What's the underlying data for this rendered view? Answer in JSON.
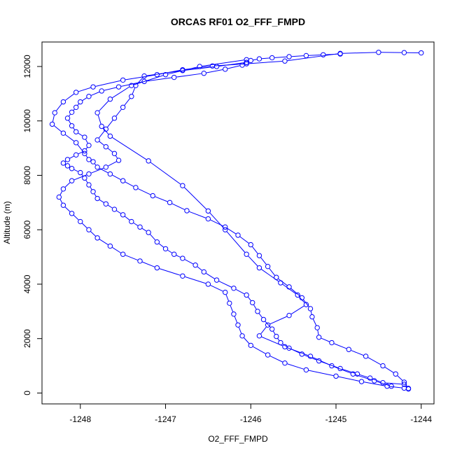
{
  "chart_data": {
    "type": "line",
    "title": "ORCAS RF01 O2_FFF_FMPD",
    "xlabel": "O2_FFF_FMPD",
    "ylabel": "Altitude (m)",
    "xlim": [
      -1248.45,
      -1243.85
    ],
    "ylim": [
      -400,
      12900
    ],
    "xticks": [
      -1248,
      -1247,
      -1246,
      -1245,
      -1244
    ],
    "xtick_labels": [
      "-1248",
      "-1247",
      "-1246",
      "-1245",
      "-1244"
    ],
    "yticks": [
      0,
      2000,
      4000,
      6000,
      8000,
      10000,
      12000
    ],
    "ytick_labels": [
      "0",
      "2000",
      "4000",
      "6000",
      "8000",
      "10000",
      "12000"
    ],
    "grid": false,
    "legend": "none",
    "marker": "open-circle",
    "color": "#0000ff",
    "series": [
      {
        "points": [
          [
            -1244.15,
            150
          ],
          [
            -1244.2,
            320
          ],
          [
            -1244.45,
            380
          ],
          [
            -1244.6,
            550
          ],
          [
            -1244.75,
            700
          ],
          [
            -1244.95,
            900
          ],
          [
            -1245.2,
            1180
          ],
          [
            -1245.4,
            1430
          ],
          [
            -1245.55,
            1650
          ],
          [
            -1245.65,
            1850
          ],
          [
            -1245.7,
            2080
          ],
          [
            -1245.75,
            2350
          ],
          [
            -1245.85,
            2700
          ],
          [
            -1245.92,
            3000
          ],
          [
            -1245.98,
            3320
          ],
          [
            -1246.05,
            3600
          ],
          [
            -1246.2,
            3850
          ],
          [
            -1246.4,
            4150
          ],
          [
            -1246.55,
            4450
          ],
          [
            -1246.65,
            4700
          ],
          [
            -1246.8,
            4950
          ],
          [
            -1246.9,
            5100
          ],
          [
            -1247.0,
            5300
          ],
          [
            -1247.1,
            5550
          ],
          [
            -1247.2,
            5900
          ],
          [
            -1247.3,
            6100
          ],
          [
            -1247.4,
            6300
          ],
          [
            -1247.5,
            6550
          ],
          [
            -1247.6,
            6750
          ],
          [
            -1247.7,
            6950
          ],
          [
            -1247.8,
            7150
          ],
          [
            -1247.85,
            7400
          ],
          [
            -1247.9,
            7650
          ],
          [
            -1247.95,
            7900
          ],
          [
            -1248.0,
            8100
          ],
          [
            -1248.1,
            8250
          ],
          [
            -1248.15,
            8350
          ],
          [
            -1248.2,
            8450
          ],
          [
            -1248.15,
            8580
          ],
          [
            -1248.05,
            8750
          ],
          [
            -1247.95,
            8900
          ],
          [
            -1247.9,
            9100
          ],
          [
            -1247.95,
            9400
          ],
          [
            -1248.05,
            9600
          ],
          [
            -1248.1,
            9820
          ],
          [
            -1248.15,
            10100
          ],
          [
            -1248.1,
            10320
          ],
          [
            -1248.05,
            10500
          ],
          [
            -1248.0,
            10700
          ],
          [
            -1247.9,
            10900
          ],
          [
            -1247.75,
            11100
          ],
          [
            -1247.55,
            11250
          ],
          [
            -1247.25,
            11450
          ],
          [
            -1246.9,
            11600
          ],
          [
            -1246.55,
            11750
          ],
          [
            -1246.3,
            11900
          ],
          [
            -1246.1,
            12050
          ],
          [
            -1246.05,
            12150
          ],
          [
            -1246.0,
            12220
          ],
          [
            -1245.9,
            12280
          ],
          [
            -1245.75,
            12320
          ],
          [
            -1245.55,
            12360
          ],
          [
            -1245.35,
            12400
          ],
          [
            -1245.15,
            12430
          ],
          [
            -1244.95,
            12460
          ]
        ]
      },
      {
        "points": [
          [
            -1244.0,
            12500
          ],
          [
            -1244.2,
            12510
          ],
          [
            -1244.5,
            12520
          ],
          [
            -1244.95,
            12480
          ],
          [
            -1245.6,
            12200
          ],
          [
            -1246.05,
            12100
          ],
          [
            -1246.45,
            12020
          ],
          [
            -1246.8,
            11880
          ],
          [
            -1247.1,
            11700
          ],
          [
            -1247.5,
            11500
          ],
          [
            -1247.85,
            11250
          ],
          [
            -1248.05,
            11050
          ],
          [
            -1248.2,
            10700
          ],
          [
            -1248.3,
            10300
          ],
          [
            -1248.33,
            9880
          ],
          [
            -1248.2,
            9550
          ],
          [
            -1248.05,
            9200
          ],
          [
            -1247.95,
            8800
          ],
          [
            -1247.9,
            8580
          ],
          [
            -1247.85,
            8500
          ],
          [
            -1247.8,
            8300
          ],
          [
            -1247.65,
            8050
          ],
          [
            -1247.5,
            7800
          ],
          [
            -1247.35,
            7550
          ],
          [
            -1247.15,
            7250
          ],
          [
            -1246.95,
            7000
          ],
          [
            -1246.75,
            6700
          ],
          [
            -1246.5,
            6400
          ],
          [
            -1246.3,
            6100
          ],
          [
            -1246.15,
            5800
          ],
          [
            -1246.0,
            5450
          ],
          [
            -1245.9,
            5050
          ],
          [
            -1245.8,
            4650
          ],
          [
            -1245.7,
            4250
          ],
          [
            -1245.55,
            3900
          ],
          [
            -1245.4,
            3500
          ],
          [
            -1245.3,
            3100
          ],
          [
            -1245.28,
            2800
          ],
          [
            -1245.22,
            2400
          ],
          [
            -1245.2,
            2050
          ],
          [
            -1245.05,
            1850
          ],
          [
            -1244.85,
            1600
          ],
          [
            -1244.65,
            1350
          ],
          [
            -1244.45,
            1000
          ],
          [
            -1244.3,
            700
          ],
          [
            -1244.2,
            400
          ],
          [
            -1244.15,
            170
          ]
        ]
      },
      {
        "points": [
          [
            -1244.2,
            180
          ],
          [
            -1244.4,
            250
          ],
          [
            -1244.7,
            420
          ],
          [
            -1245.0,
            620
          ],
          [
            -1245.35,
            850
          ],
          [
            -1245.6,
            1100
          ],
          [
            -1245.8,
            1400
          ],
          [
            -1246.0,
            1750
          ],
          [
            -1246.1,
            2100
          ],
          [
            -1246.15,
            2500
          ],
          [
            -1246.2,
            2900
          ],
          [
            -1246.25,
            3300
          ],
          [
            -1246.3,
            3700
          ],
          [
            -1246.5,
            4000
          ],
          [
            -1246.8,
            4300
          ],
          [
            -1247.1,
            4600
          ],
          [
            -1247.3,
            4850
          ],
          [
            -1247.5,
            5100
          ],
          [
            -1247.65,
            5400
          ],
          [
            -1247.8,
            5700
          ],
          [
            -1247.9,
            6000
          ],
          [
            -1248.0,
            6300
          ],
          [
            -1248.1,
            6600
          ],
          [
            -1248.2,
            6900
          ],
          [
            -1248.25,
            7200
          ],
          [
            -1248.2,
            7500
          ],
          [
            -1248.1,
            7800
          ],
          [
            -1247.9,
            8050
          ],
          [
            -1247.7,
            8300
          ],
          [
            -1247.55,
            8550
          ],
          [
            -1247.6,
            8800
          ],
          [
            -1247.7,
            9050
          ],
          [
            -1247.8,
            9300
          ],
          [
            -1247.7,
            9700
          ],
          [
            -1247.6,
            10100
          ],
          [
            -1247.5,
            10500
          ],
          [
            -1247.4,
            10900
          ],
          [
            -1247.35,
            11300
          ],
          [
            -1247.25,
            11650
          ],
          [
            -1246.8,
            11850
          ],
          [
            -1246.4,
            12000
          ],
          [
            -1246.05,
            12150
          ]
        ]
      },
      {
        "points": [
          [
            -1246.05,
            12250
          ],
          [
            -1246.6,
            12000
          ],
          [
            -1247.0,
            11700
          ],
          [
            -1247.4,
            11300
          ],
          [
            -1247.65,
            10800
          ],
          [
            -1247.8,
            10300
          ],
          [
            -1247.75,
            9800
          ],
          [
            -1247.65,
            9440
          ],
          [
            -1247.2,
            8530
          ],
          [
            -1246.8,
            7620
          ],
          [
            -1246.5,
            6690
          ],
          [
            -1246.3,
            6000
          ],
          [
            -1246.05,
            5100
          ],
          [
            -1245.9,
            4600
          ],
          [
            -1245.65,
            4050
          ],
          [
            -1245.45,
            3600
          ],
          [
            -1245.35,
            3250
          ],
          [
            -1245.55,
            2850
          ],
          [
            -1245.8,
            2500
          ],
          [
            -1245.9,
            2100
          ],
          [
            -1245.6,
            1700
          ],
          [
            -1245.3,
            1350
          ],
          [
            -1245.05,
            1000
          ],
          [
            -1244.8,
            700
          ],
          [
            -1244.55,
            450
          ],
          [
            -1244.35,
            250
          ]
        ]
      }
    ]
  }
}
